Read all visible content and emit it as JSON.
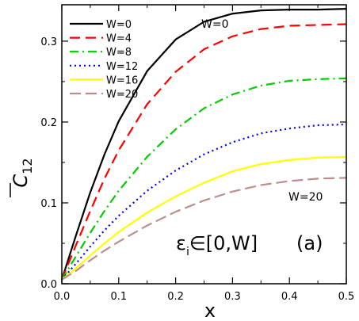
{
  "chart_data": {
    "type": "line",
    "xlabel": "x",
    "ylabel_main": "C",
    "ylabel_sub": "12",
    "xlim": [
      0.0,
      0.5
    ],
    "ylim": [
      0.0,
      0.345
    ],
    "xticks": [
      "0.0",
      "0.1",
      "0.2",
      "0.3",
      "0.4",
      "0.5"
    ],
    "yticks": [
      "0.0",
      "0.1",
      "0.2",
      "0.3"
    ],
    "x": [
      0.0,
      0.025,
      0.05,
      0.075,
      0.1,
      0.15,
      0.2,
      0.25,
      0.3,
      0.35,
      0.4,
      0.45,
      0.5
    ],
    "series": [
      {
        "name": "W=0",
        "color": "#000000",
        "dash": "solid",
        "values": [
          0.005,
          0.06,
          0.113,
          0.16,
          0.201,
          0.263,
          0.302,
          0.324,
          0.334,
          0.338,
          0.339,
          0.339,
          0.34
        ]
      },
      {
        "name": "W=4",
        "color": "#ff0000",
        "dash": "dash",
        "values": [
          0.005,
          0.048,
          0.09,
          0.13,
          0.165,
          0.222,
          0.262,
          0.29,
          0.306,
          0.315,
          0.319,
          0.32,
          0.321
        ]
      },
      {
        "name": "W=8",
        "color": "#00cc00",
        "dash": "dashdot",
        "values": [
          0.005,
          0.034,
          0.063,
          0.09,
          0.115,
          0.157,
          0.191,
          0.217,
          0.234,
          0.245,
          0.251,
          0.253,
          0.254
        ]
      },
      {
        "name": "W=12",
        "color": "#0000ff",
        "dash": "dot",
        "values": [
          0.005,
          0.025,
          0.046,
          0.066,
          0.084,
          0.115,
          0.14,
          0.16,
          0.175,
          0.186,
          0.192,
          0.196,
          0.197
        ]
      },
      {
        "name": "W=16",
        "color": "#ffff00",
        "dash": "solid",
        "values": [
          0.005,
          0.019,
          0.035,
          0.05,
          0.064,
          0.088,
          0.108,
          0.125,
          0.139,
          0.148,
          0.153,
          0.156,
          0.157
        ]
      },
      {
        "name": "W=20",
        "color": "#bc8f8f",
        "dash": "longdash",
        "values": [
          0.005,
          0.016,
          0.029,
          0.041,
          0.052,
          0.072,
          0.089,
          0.103,
          0.114,
          0.122,
          0.127,
          0.13,
          0.131
        ]
      }
    ],
    "annotations": {
      "top": "W=0",
      "bottom": "W=20",
      "range_text": "ε",
      "range_sub": "i",
      "range_rest": "∈[0,W]",
      "panel": "(a)"
    }
  }
}
